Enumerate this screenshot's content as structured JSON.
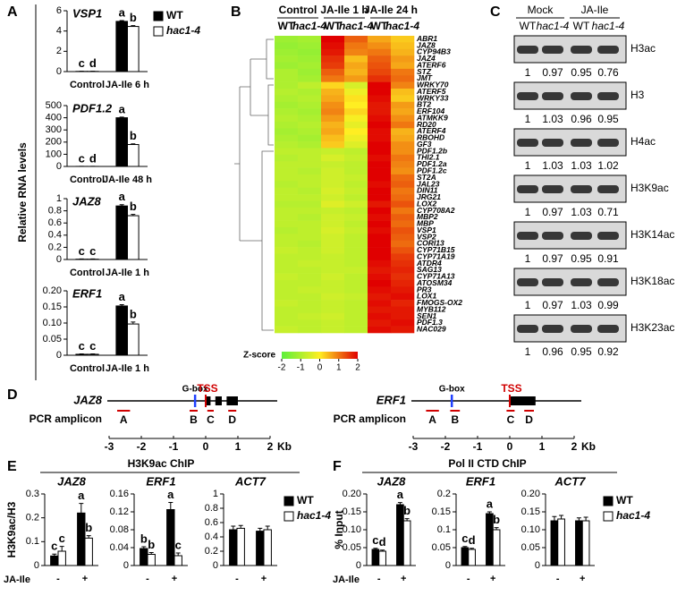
{
  "panel_labels": [
    "A",
    "B",
    "C",
    "D",
    "E",
    "F"
  ],
  "chart_data": [
    {
      "type": "bar",
      "title": "VSP1",
      "ylabel": "Relative RNA levels",
      "categories": [
        "Control",
        "JA-Ile 6 h"
      ],
      "ylim": [
        0,
        6
      ],
      "yticks": [
        0,
        2,
        4,
        6
      ],
      "legend": "right",
      "series": [
        {
          "name": "WT",
          "color": "#000000",
          "values": [
            0.02,
            4.95
          ],
          "errors": [
            0.01,
            0.08
          ],
          "letters": [
            "c",
            "a"
          ]
        },
        {
          "name": "hac1-4",
          "color": "#ffffff",
          "values": [
            0.02,
            4.45
          ],
          "errors": [
            0.01,
            0.08
          ],
          "letters": [
            "d",
            "b"
          ]
        }
      ]
    },
    {
      "type": "bar",
      "title": "PDF1.2",
      "categories": [
        "Control",
        "JA-Ile 48 h"
      ],
      "ylim": [
        0,
        500
      ],
      "yticks": [
        0,
        100,
        200,
        300,
        400,
        500
      ],
      "series": [
        {
          "color": "#000000",
          "values": [
            0.5,
            400
          ],
          "errors": [
            0.3,
            5
          ],
          "letters": [
            "c",
            "a"
          ]
        },
        {
          "color": "#ffffff",
          "values": [
            0.4,
            180
          ],
          "errors": [
            0.3,
            6
          ],
          "letters": [
            "d",
            "b"
          ]
        }
      ]
    },
    {
      "type": "bar",
      "title": "JAZ8",
      "categories": [
        "Control",
        "JA-Ile 1 h"
      ],
      "ylim": [
        0,
        1
      ],
      "yticks": [
        0,
        0.2,
        0.4,
        0.6,
        0.8,
        1
      ],
      "series": [
        {
          "color": "#000000",
          "values": [
            0.005,
            0.88
          ],
          "errors": [
            0.005,
            0.02
          ],
          "letters": [
            "c",
            "a"
          ]
        },
        {
          "color": "#ffffff",
          "values": [
            0.005,
            0.72
          ],
          "errors": [
            0.005,
            0.02
          ],
          "letters": [
            "c",
            "b"
          ]
        }
      ]
    },
    {
      "type": "bar",
      "title": "ERF1",
      "categories": [
        "Control",
        "JA-Ile 1 h"
      ],
      "ylim": [
        0,
        0.2
      ],
      "yticks": [
        0,
        0.05,
        {
          "value": 0.1,
          "label": "0.10"
        },
        0.15,
        {
          "value": 0.2,
          "label": "0.20"
        }
      ],
      "series": [
        {
          "color": "#000000",
          "values": [
            0.003,
            0.153
          ],
          "errors": [
            0.001,
            0.004
          ],
          "letters": [
            "c",
            "a"
          ]
        },
        {
          "color": "#ffffff",
          "values": [
            0.003,
            0.097
          ],
          "errors": [
            0.001,
            0.006
          ],
          "letters": [
            "c",
            "b"
          ]
        }
      ]
    },
    {
      "type": "heatmap",
      "groups": [
        "Control",
        "JA-Ile 1 h",
        "JA-Ile 24 h"
      ],
      "columns": [
        "WT",
        "hac1-4",
        "WT",
        "hac1-4",
        "WT",
        "hac1-4"
      ],
      "rows": [
        "ABR1",
        "JAZ8",
        "CYP94B3",
        "JAZ4",
        "ATERF6",
        "STZ",
        "JMT",
        "WRKY70",
        "ATERF5",
        "WRKY33",
        "BT2",
        "ERF104",
        "ATMKK9",
        "RD20",
        "ATERF4",
        "RBOHD",
        "GF3",
        "PDF1.2b",
        "THI2.1",
        "PDF1.2a",
        "PDF1.2c",
        "ST2A",
        "JAL23",
        "DIN11",
        "JRG21",
        "LOX2",
        "CYP708A2",
        "MBP2",
        "MBP",
        "VSP1",
        "VSP2",
        "CORI13",
        "CYP71B15",
        "CYP71A19",
        "ATDR4",
        "SAG13",
        "CYP71A13",
        "ATOSM34",
        "PR3",
        "LOX1",
        "FMOGS-OX2",
        "MYB112",
        "SEN1",
        "PDF1.3",
        "NAC029"
      ],
      "values": [
        [
          -1.2,
          -1.1,
          2.0,
          1.2,
          0.6,
          0.3
        ],
        [
          -1.3,
          -1.2,
          1.9,
          1.0,
          0.8,
          0.4
        ],
        [
          -1.2,
          -1.3,
          1.8,
          0.9,
          1.0,
          0.5
        ],
        [
          -1.1,
          -1.2,
          1.6,
          0.4,
          1.2,
          0.7
        ],
        [
          -1.2,
          -1.1,
          1.5,
          0.6,
          1.3,
          0.6
        ],
        [
          -1.0,
          -1.2,
          1.2,
          0.5,
          1.4,
          1.0
        ],
        [
          -1.0,
          -1.1,
          1.0,
          0.7,
          1.6,
          1.1
        ],
        [
          -1.0,
          -0.8,
          0.2,
          -0.5,
          2.0,
          0.9
        ],
        [
          -0.9,
          -1.0,
          0.5,
          -0.2,
          2.0,
          0.4
        ],
        [
          -1.0,
          -0.9,
          0.6,
          0.1,
          1.9,
          0.3
        ],
        [
          -1.1,
          -1.0,
          0.8,
          0.0,
          1.8,
          0.7
        ],
        [
          -1.0,
          -1.1,
          0.9,
          0.2,
          1.8,
          0.6
        ],
        [
          -0.9,
          -1.0,
          0.7,
          -0.1,
          1.9,
          0.8
        ],
        [
          -1.0,
          -0.9,
          0.5,
          -0.3,
          2.0,
          1.0
        ],
        [
          -1.1,
          -1.0,
          0.6,
          0.0,
          1.9,
          0.5
        ],
        [
          -1.0,
          -1.1,
          0.4,
          -0.2,
          1.9,
          0.6
        ],
        [
          -0.9,
          -1.0,
          0.3,
          -0.4,
          2.0,
          0.8
        ],
        [
          -0.8,
          -0.8,
          -0.7,
          -0.8,
          2.0,
          0.8
        ],
        [
          -0.9,
          -0.8,
          -0.5,
          -0.7,
          1.9,
          1.0
        ],
        [
          -0.8,
          -0.8,
          -0.7,
          -0.8,
          2.0,
          0.9
        ],
        [
          -0.8,
          -0.9,
          -0.6,
          -0.8,
          2.0,
          0.8
        ],
        [
          -0.8,
          -0.8,
          -0.6,
          -0.7,
          2.0,
          1.1
        ],
        [
          -0.9,
          -0.8,
          -0.6,
          -0.8,
          1.9,
          1.2
        ],
        [
          -0.8,
          -0.9,
          -0.5,
          -0.7,
          2.0,
          1.0
        ],
        [
          -0.8,
          -0.8,
          -0.6,
          -0.8,
          2.0,
          1.1
        ],
        [
          -0.9,
          -0.9,
          -0.4,
          -0.6,
          1.8,
          1.3
        ],
        [
          -0.8,
          -0.8,
          -0.7,
          -0.8,
          2.0,
          1.0
        ],
        [
          -0.8,
          -0.9,
          -0.6,
          -0.7,
          1.9,
          1.2
        ],
        [
          -0.8,
          -0.8,
          -0.6,
          -0.8,
          2.0,
          1.1
        ],
        [
          -0.9,
          -0.8,
          -0.5,
          -0.7,
          1.9,
          1.3
        ],
        [
          -0.8,
          -0.8,
          -0.6,
          -0.8,
          2.0,
          1.2
        ],
        [
          -0.8,
          -0.9,
          -0.6,
          -0.8,
          2.0,
          1.1
        ],
        [
          -0.7,
          -0.8,
          -0.6,
          -0.8,
          2.0,
          1.3
        ],
        [
          -0.8,
          -0.8,
          -0.7,
          -0.8,
          2.0,
          1.5
        ],
        [
          -0.8,
          -0.7,
          -0.7,
          -0.8,
          1.9,
          1.6
        ],
        [
          -0.8,
          -0.8,
          -0.7,
          -0.7,
          1.8,
          1.7
        ],
        [
          -0.7,
          -0.8,
          -0.6,
          -0.8,
          1.9,
          1.6
        ],
        [
          -0.8,
          -0.8,
          -0.7,
          -0.8,
          2.0,
          1.7
        ],
        [
          -0.8,
          -0.7,
          -0.7,
          -0.8,
          1.9,
          1.8
        ],
        [
          -0.8,
          -0.8,
          -0.6,
          -0.7,
          1.8,
          1.9
        ],
        [
          -0.7,
          -0.8,
          -0.7,
          -0.8,
          1.9,
          1.7
        ],
        [
          -0.8,
          -0.8,
          -0.7,
          -0.8,
          1.8,
          1.8
        ],
        [
          -0.8,
          -0.7,
          -0.6,
          -0.8,
          1.9,
          1.8
        ],
        [
          -0.8,
          -0.8,
          -0.7,
          -0.8,
          1.8,
          1.9
        ],
        [
          -0.7,
          -0.8,
          -0.7,
          -0.8,
          1.9,
          1.8
        ]
      ],
      "clim": [
        -2,
        2
      ],
      "cticks": [
        -2,
        -1,
        0,
        1,
        2
      ],
      "colorbar_label": "Z-score",
      "colors": [
        "#5cf03c",
        "#ffee22",
        "#e00000"
      ]
    },
    {
      "type": "bar",
      "title": "JAZ8",
      "suptitle": "H3K9ac ChIP",
      "ylabel": "H3K9ac/H3",
      "xlabel": "JA-Ile",
      "categories": [
        "-",
        "+"
      ],
      "ylim": [
        0,
        0.3
      ],
      "yticks": [
        0,
        0.1,
        0.2,
        0.3
      ],
      "series": [
        {
          "color": "#000000",
          "values": [
            0.04,
            0.22
          ],
          "errors": [
            0.008,
            0.04
          ],
          "letters": [
            "c",
            "a"
          ]
        },
        {
          "color": "#ffffff",
          "values": [
            0.06,
            0.115
          ],
          "errors": [
            0.02,
            0.01
          ],
          "letters": [
            "c",
            "b"
          ]
        }
      ]
    },
    {
      "type": "bar",
      "title": "ERF1",
      "categories": [
        "-",
        "+"
      ],
      "ylim": [
        0,
        0.16
      ],
      "yticks": [
        0,
        0.04,
        0.08,
        0.12,
        0.16
      ],
      "series": [
        {
          "color": "#000000",
          "values": [
            0.038,
            0.125
          ],
          "errors": [
            0.004,
            0.016
          ],
          "letters": [
            "b",
            "a"
          ]
        },
        {
          "color": "#ffffff",
          "values": [
            0.025,
            0.022
          ],
          "errors": [
            0.004,
            0.006
          ],
          "letters": [
            "b",
            "c"
          ]
        }
      ]
    },
    {
      "type": "bar",
      "title": "ACT7",
      "categories": [
        "-",
        "+"
      ],
      "ylim": [
        0,
        1
      ],
      "yticks": [
        0,
        0.2,
        0.4,
        0.6,
        0.8,
        1
      ],
      "legend": "right",
      "series": [
        {
          "name": "WT",
          "color": "#000000",
          "values": [
            0.5,
            0.48
          ],
          "errors": [
            0.05,
            0.04
          ]
        },
        {
          "name": "hac1-4",
          "color": "#ffffff",
          "values": [
            0.52,
            0.5
          ],
          "errors": [
            0.04,
            0.05
          ]
        }
      ]
    },
    {
      "type": "bar",
      "title": "JAZ8",
      "suptitle": "Pol II CTD ChIP",
      "ylabel": "% Input",
      "xlabel": "JA-Ile",
      "categories": [
        "-",
        "+"
      ],
      "ylim": [
        0,
        0.2
      ],
      "yticks": [
        0,
        0.05,
        {
          "value": 0.1,
          "label": "0.10"
        },
        0.15,
        {
          "value": 0.2,
          "label": "0.20"
        }
      ],
      "series": [
        {
          "color": "#000000",
          "values": [
            0.045,
            0.17
          ],
          "errors": [
            0.003,
            0.006
          ],
          "letters": [
            "c",
            "a"
          ]
        },
        {
          "color": "#ffffff",
          "values": [
            0.04,
            0.125
          ],
          "errors": [
            0.003,
            0.006
          ],
          "letters": [
            "d",
            "b"
          ]
        }
      ]
    },
    {
      "type": "bar",
      "title": "ERF1",
      "categories": [
        "-",
        "+"
      ],
      "ylim": [
        0,
        0.2
      ],
      "yticks": [
        0,
        0.05,
        0.1,
        0.15,
        0.2
      ],
      "series": [
        {
          "color": "#000000",
          "values": [
            0.05,
            0.145
          ],
          "errors": [
            0.003,
            0.005
          ],
          "letters": [
            "c",
            "a"
          ]
        },
        {
          "color": "#ffffff",
          "values": [
            0.045,
            0.1
          ],
          "errors": [
            0.003,
            0.006
          ],
          "letters": [
            "d",
            "b"
          ]
        }
      ]
    },
    {
      "type": "bar",
      "title": "ACT7",
      "categories": [
        "-",
        "+"
      ],
      "ylim": [
        0,
        0.2
      ],
      "yticks": [
        0,
        0.05,
        {
          "value": 0.1,
          "label": "0.10"
        },
        0.15,
        {
          "value": 0.2,
          "label": "0.20"
        }
      ],
      "legend": "right",
      "series": [
        {
          "name": "WT",
          "color": "#000000",
          "values": [
            0.125,
            0.125
          ],
          "errors": [
            0.012,
            0.008
          ]
        },
        {
          "name": "hac1-4",
          "color": "#ffffff",
          "values": [
            0.13,
            0.125
          ],
          "errors": [
            0.01,
            0.01
          ]
        }
      ]
    }
  ],
  "blots": {
    "groups": [
      "Mock",
      "JA-Ile"
    ],
    "lanes": [
      "WT",
      "hac1-4",
      "WT",
      "hac1-4"
    ],
    "rows": [
      {
        "label": "H3ac",
        "values": [
          1,
          0.97,
          0.95,
          0.76
        ]
      },
      {
        "label": "H3",
        "values": [
          1,
          1.03,
          0.96,
          0.95
        ]
      },
      {
        "label": "H4ac",
        "values": [
          1,
          1.03,
          1.03,
          1.02
        ]
      },
      {
        "label": "H3K9ac",
        "values": [
          1,
          0.97,
          1.03,
          0.71
        ]
      },
      {
        "label": "H3K14ac",
        "values": [
          1,
          0.97,
          0.95,
          0.91
        ]
      },
      {
        "label": "H3K18ac",
        "values": [
          1,
          0.97,
          1.03,
          0.99
        ]
      },
      {
        "label": "H3K23ac",
        "values": [
          1,
          0.96,
          0.95,
          0.92
        ]
      }
    ]
  },
  "diagrams": [
    {
      "gene": "JAZ8",
      "row_label": "PCR amplicon",
      "motif": {
        "label": "G-box",
        "pos": -0.33
      },
      "tss": {
        "label": "TSS",
        "pos": 0
      },
      "exons": [
        [
          0,
          0.15
        ],
        [
          0.3,
          0.5
        ],
        [
          0.65,
          1.0
        ]
      ],
      "amplicons": [
        {
          "label": "A",
          "start": -2.75,
          "end": -2.35
        },
        {
          "label": "B",
          "start": -0.5,
          "end": -0.25
        },
        {
          "label": "C",
          "start": 0.05,
          "end": 0.25
        },
        {
          "label": "D",
          "start": 0.7,
          "end": 0.95
        }
      ],
      "xticks": [
        -3,
        -2,
        -1,
        0,
        1,
        2
      ],
      "unit": "Kb"
    },
    {
      "gene": "ERF1",
      "row_label": "PCR amplicon",
      "motif": {
        "label": "G-box",
        "pos": -1.8
      },
      "tss": {
        "label": "TSS",
        "pos": 0
      },
      "exons": [
        [
          0,
          0.8
        ]
      ],
      "amplicons": [
        {
          "label": "A",
          "start": -2.6,
          "end": -2.2
        },
        {
          "label": "B",
          "start": -1.85,
          "end": -1.55
        },
        {
          "label": "C",
          "start": -0.1,
          "end": 0.15
        },
        {
          "label": "D",
          "start": 0.45,
          "end": 0.75
        }
      ],
      "xticks": [
        -3,
        -2,
        -1,
        0,
        1,
        2
      ],
      "unit": "Kb"
    }
  ]
}
